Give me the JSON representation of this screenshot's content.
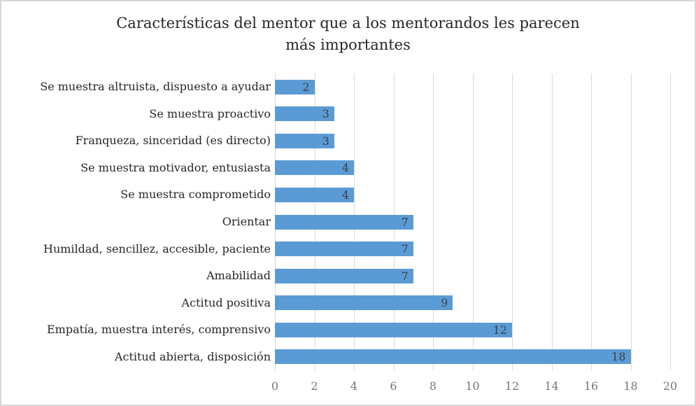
{
  "window": {
    "background": "#ffffff",
    "border_color": "#d6d6d6"
  },
  "chart_data": {
    "type": "bar",
    "orientation": "horizontal",
    "title": "Características del mentor que a los mentorandos les parecen más importantes",
    "title_lines": [
      "Características del mentor que a los mentorandos les parecen",
      "más importantes"
    ],
    "categories_top_to_bottom": [
      "Se muestra altruista, dispuesto a ayudar",
      "Se muestra proactivo",
      "Franqueza, sinceridad (es directo)",
      "Se muestra motivador, entusiasta",
      "Se muestra comprometido",
      "Orientar",
      "Humildad, sencillez, accesible, paciente",
      "Amabilidad",
      "Actitud positiva",
      "Empatía, muestra interés, comprensivo",
      "Actitud abierta, disposición"
    ],
    "values": [
      2,
      3,
      3,
      4,
      4,
      7,
      7,
      7,
      9,
      12,
      18
    ],
    "xlabel": "",
    "ylabel": "",
    "xlim": [
      0,
      20
    ],
    "xticks": [
      0,
      2,
      4,
      6,
      8,
      10,
      12,
      14,
      16,
      18,
      20
    ],
    "grid": "vertical-only",
    "legend": "none",
    "data_labels": "inside-end",
    "colors": {
      "bar": "#5b9bd5",
      "gridline": "#d9d9d9",
      "tick_label": "#757575",
      "data_label": "#404040",
      "category_label": "#262626",
      "title": "#262626"
    }
  }
}
